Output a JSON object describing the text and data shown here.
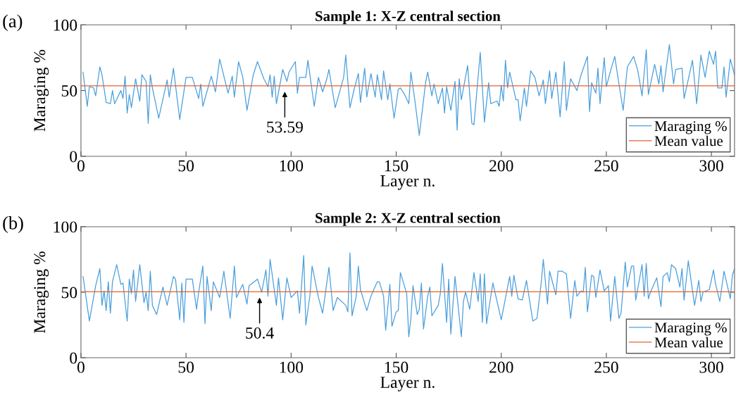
{
  "chart_data": [
    {
      "type": "line",
      "title": "Sample 1: X-Z central section",
      "xlabel": "Layer n.",
      "ylabel": "Maraging %",
      "xlim": [
        0,
        311
      ],
      "ylim": [
        0,
        100
      ],
      "xticks": [
        0,
        50,
        100,
        150,
        200,
        250,
        300
      ],
      "yticks": [
        0,
        50,
        100
      ],
      "grid": false,
      "legend": "bottom right",
      "annotations": [
        "(a)",
        {
          "text": "53.59",
          "x": 97,
          "y": 53.59
        }
      ],
      "series": [
        {
          "name": "Maraging %",
          "color": "#4a9fdc",
          "x": [
            1,
            3,
            4,
            6,
            7,
            9,
            10,
            12,
            14,
            15,
            16,
            19,
            20,
            21,
            22,
            23,
            24,
            26,
            28,
            29,
            31,
            32,
            33,
            34,
            37,
            41,
            42,
            44,
            47,
            50,
            53,
            56,
            57,
            58,
            62,
            64,
            66,
            68,
            70,
            72,
            73,
            75,
            77,
            79,
            82,
            84,
            87,
            89,
            90,
            91,
            92,
            93,
            96,
            98,
            99,
            102,
            103,
            104,
            107,
            108,
            111,
            113,
            115,
            117,
            118,
            121,
            125,
            126,
            128,
            130,
            132,
            133,
            135,
            136,
            138,
            140,
            141,
            143,
            144,
            146,
            147,
            149,
            151,
            152,
            154,
            156,
            157,
            159,
            161,
            164,
            165,
            167,
            168,
            170,
            172,
            173,
            174,
            176,
            178,
            179,
            180,
            181,
            184,
            186,
            187,
            190,
            192,
            194,
            195,
            198,
            199,
            200,
            201,
            202,
            203,
            204,
            207,
            208,
            209,
            211,
            212,
            214,
            216,
            218,
            220,
            221,
            223,
            224,
            226,
            228,
            230,
            231,
            233,
            236,
            238,
            241,
            242,
            243,
            245,
            246,
            247,
            249,
            250,
            252,
            254,
            256,
            258,
            260,
            263,
            265,
            267,
            269,
            270,
            273,
            275,
            276,
            277,
            280,
            282,
            283,
            286,
            287,
            291,
            293,
            295,
            297,
            299,
            301,
            302,
            303,
            305,
            306,
            307,
            309,
            311
          ],
          "values": [
            64,
            38,
            53,
            52,
            46,
            68,
            62,
            41,
            40,
            50,
            40,
            50,
            44,
            61,
            33,
            47,
            37,
            59,
            42,
            62,
            57,
            25,
            62,
            52,
            29,
            58,
            45,
            67,
            28,
            60,
            60,
            44,
            55,
            38,
            61,
            49,
            74,
            61,
            48,
            61,
            45,
            72,
            60,
            35,
            62,
            72,
            59,
            53,
            62,
            45,
            61,
            40,
            66,
            57,
            64,
            72,
            48,
            60,
            60,
            73,
            38,
            60,
            49,
            59,
            66,
            37,
            60,
            77,
            37,
            51,
            63,
            41,
            67,
            45,
            63,
            45,
            62,
            43,
            65,
            43,
            55,
            29,
            51,
            52,
            47,
            40,
            64,
            41,
            16,
            56,
            64,
            46,
            55,
            40,
            52,
            33,
            53,
            35,
            57,
            20,
            59,
            43,
            69,
            25,
            24,
            79,
            26,
            56,
            40,
            42,
            38,
            54,
            42,
            73,
            52,
            64,
            43,
            43,
            27,
            52,
            38,
            65,
            60,
            46,
            58,
            40,
            65,
            44,
            64,
            30,
            72,
            35,
            59,
            50,
            62,
            76,
            34,
            56,
            48,
            67,
            40,
            75,
            53,
            65,
            76,
            55,
            35,
            68,
            76,
            65,
            46,
            81,
            47,
            70,
            55,
            69,
            49,
            85,
            55,
            66,
            67,
            44,
            73,
            40,
            77,
            60,
            80,
            70,
            80,
            52,
            52,
            68,
            45,
            74,
            62
          ]
        },
        {
          "name": "Mean value",
          "color": "#e8602c",
          "x": [
            0,
            311
          ],
          "values": [
            53.59,
            53.59
          ]
        }
      ]
    },
    {
      "type": "line",
      "title": "Sample 2: X-Z central section",
      "xlabel": "Layer n.",
      "ylabel": "Maraging %",
      "xlim": [
        0,
        311
      ],
      "ylim": [
        0,
        100
      ],
      "xticks": [
        0,
        50,
        100,
        150,
        200,
        250,
        300
      ],
      "yticks": [
        0,
        50,
        100
      ],
      "grid": false,
      "legend": "bottom right",
      "annotations": [
        "(b)",
        {
          "text": "50.4",
          "x": 85,
          "y": 50.4
        }
      ],
      "series": [
        {
          "name": "Maraging %",
          "color": "#4a9fdc",
          "x": [
            1,
            4,
            7,
            9,
            10,
            11,
            12,
            13,
            14,
            15,
            17,
            19,
            20,
            22,
            23,
            24,
            25,
            26,
            28,
            30,
            31,
            32,
            33,
            34,
            36,
            39,
            41,
            44,
            45,
            47,
            48,
            49,
            50,
            53,
            55,
            56,
            58,
            59,
            60,
            62,
            63,
            66,
            68,
            71,
            73,
            74,
            77,
            79,
            80,
            84,
            86,
            88,
            89,
            90,
            93,
            94,
            96,
            98,
            100,
            103,
            104,
            106,
            107,
            109,
            110,
            113,
            115,
            118,
            120,
            122,
            126,
            127,
            128,
            129,
            131,
            132,
            133,
            136,
            138,
            141,
            142,
            144,
            145,
            147,
            148,
            150,
            151,
            152,
            155,
            156,
            157,
            158,
            160,
            161,
            162,
            163,
            165,
            166,
            167,
            170,
            171,
            172,
            174,
            175,
            176,
            178,
            181,
            182,
            183,
            185,
            187,
            189,
            190,
            191,
            192,
            193,
            196,
            200,
            204,
            205,
            206,
            208,
            210,
            212,
            215,
            217,
            219,
            220,
            222,
            223,
            226,
            227,
            229,
            231,
            233,
            235,
            236,
            238,
            239,
            240,
            241,
            243,
            244,
            245,
            247,
            249,
            251,
            252,
            254,
            256,
            257,
            259,
            260,
            262,
            263,
            264,
            267,
            268,
            269,
            270,
            271,
            274,
            276,
            277,
            279,
            280,
            281,
            283,
            285,
            286,
            287,
            289,
            292,
            294,
            295,
            296,
            299,
            301,
            302,
            304,
            306,
            309,
            310,
            311
          ],
          "values": [
            62,
            28,
            55,
            68,
            40,
            51,
            36,
            58,
            34,
            58,
            71,
            56,
            57,
            28,
            60,
            49,
            67,
            43,
            71,
            42,
            50,
            36,
            66,
            40,
            33,
            54,
            40,
            62,
            60,
            29,
            57,
            27,
            60,
            60,
            37,
            50,
            70,
            26,
            62,
            36,
            58,
            46,
            66,
            30,
            70,
            46,
            56,
            41,
            55,
            60,
            50,
            67,
            47,
            75,
            40,
            61,
            29,
            61,
            46,
            51,
            34,
            78,
            25,
            48,
            70,
            46,
            34,
            69,
            36,
            46,
            40,
            35,
            80,
            32,
            47,
            70,
            52,
            36,
            47,
            58,
            58,
            47,
            21,
            56,
            24,
            35,
            36,
            65,
            49,
            16,
            30,
            55,
            33,
            37,
            57,
            22,
            47,
            54,
            32,
            40,
            49,
            72,
            27,
            60,
            18,
            62,
            16,
            43,
            50,
            37,
            65,
            43,
            64,
            27,
            64,
            26,
            57,
            29,
            62,
            47,
            63,
            45,
            44,
            59,
            28,
            30,
            57,
            75,
            41,
            66,
            48,
            66,
            66,
            64,
            30,
            59,
            47,
            51,
            50,
            69,
            35,
            63,
            62,
            46,
            67,
            51,
            55,
            28,
            62,
            30,
            34,
            73,
            54,
            70,
            70,
            44,
            71,
            47,
            72,
            45,
            50,
            61,
            39,
            62,
            65,
            58,
            71,
            68,
            54,
            68,
            44,
            74,
            40,
            59,
            43,
            50,
            52,
            67,
            56,
            43,
            66,
            45,
            63,
            68
          ]
        },
        {
          "name": "Mean value",
          "color": "#e8602c",
          "x": [
            0,
            311
          ],
          "values": [
            50.4,
            50.4
          ]
        }
      ]
    }
  ]
}
